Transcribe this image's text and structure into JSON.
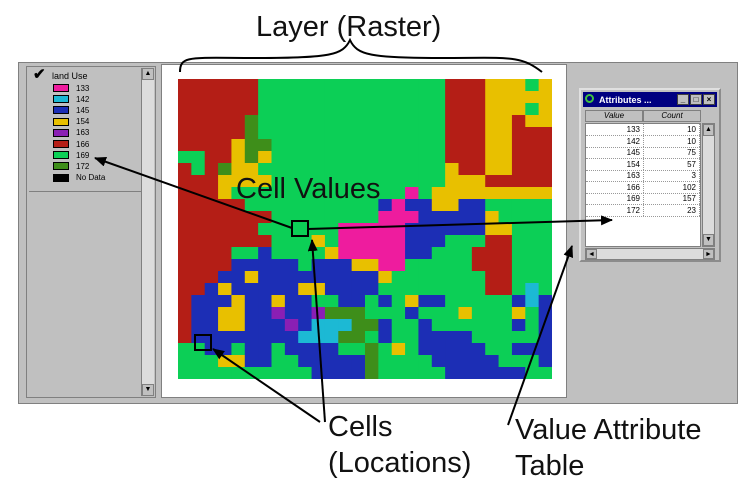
{
  "labels": {
    "layer": "Layer (Raster)",
    "cell_values": "Cell Values",
    "cells_line1": "Cells",
    "cells_line2": "(Locations)",
    "vat_line1": "Value Attribute",
    "vat_line2": "Table"
  },
  "legend": {
    "title": "land Use",
    "items": [
      {
        "label": "133",
        "color": "#ee1c9e"
      },
      {
        "label": "142",
        "color": "#1cb9d4"
      },
      {
        "label": "145",
        "color": "#1c2eb5"
      },
      {
        "label": "154",
        "color": "#e8c000"
      },
      {
        "label": "163",
        "color": "#8a1fb4"
      },
      {
        "label": "166",
        "color": "#b41e16"
      },
      {
        "label": "169",
        "color": "#0ccf56"
      },
      {
        "label": "172",
        "color": "#3e8e1a"
      },
      {
        "label": "No Data",
        "color": "#000000"
      }
    ]
  },
  "attributes": {
    "title": "Attributes ...",
    "columns": [
      "Value",
      "Count"
    ],
    "rows": [
      {
        "value": "133",
        "count": "10"
      },
      {
        "value": "142",
        "count": "10"
      },
      {
        "value": "145",
        "count": "75"
      },
      {
        "value": "154",
        "count": "57"
      },
      {
        "value": "163",
        "count": "3"
      },
      {
        "value": "166",
        "count": "102"
      },
      {
        "value": "169",
        "count": "157"
      },
      {
        "value": "172",
        "count": "23"
      }
    ],
    "window_buttons": [
      "_",
      "□",
      "×"
    ]
  },
  "raster_grid": [
    "666666GGGGGGGGGGGGGG666YYYGY",
    "666666GGGGGGGGGGGGGG666YYYYY",
    "666666GGGGGGGGGGGGGG666YYYGY",
    "66666LGGGGGGGGGGGGGG666YY6YY",
    "66666LGGGGGGGGGGGGGG666YY666",
    "6666YLLGGGGGGGGGGGGG666YY666",
    "GG66YLYGGGGGGGGGGGGG666YY666",
    "6G6LYYGGGGGGGGGGGGGGY66YY666",
    "666YYYYGGGGGGGGGGGGGYYY66666",
    "666YGGGGGGGGGGGGGMGYYYYYYYYY",
    "66666GGGGGGGGGGBMBBYYBBGGGGG",
    "6666666GGGGGGGGMMMBBBBBYGGGG",
    "666666GGGGGGMMMMMBBBBBBYYGGG",
    "6666666GGGYGMMMMMBBBGGG66GGG",
    "6666GGBGGGGYMMMMMBBGGG666GGG",
    "6666BBBBBGBBBYYMMGGGGG666GGG",
    "666BBYBBBBBBBBBYGGGGGGG66GGG",
    "66BYBBBBBYYBBBBGGGGGGGG66GCG",
    "6BBBYBBYBBGGBBGBGYBBGGGGGBCB",
    "6BBYYBBPBBPLLLGGGBGGGYGGGYGB",
    "6BBYYBBBPBCCCLLBGGBGGGGGGBGB",
    "6BBBBBBBBCCCLLGBGGBBBBGGGGGB",
    "GGBBGBBGBBBBGGLGYGBBBBBGGBBB",
    "GGGYYBBGGBBBBBLGGGGBBBBBGGGB",
    "GGGGGGGGGGBBBBLGGGGGBBBBBBGG"
  ]
}
